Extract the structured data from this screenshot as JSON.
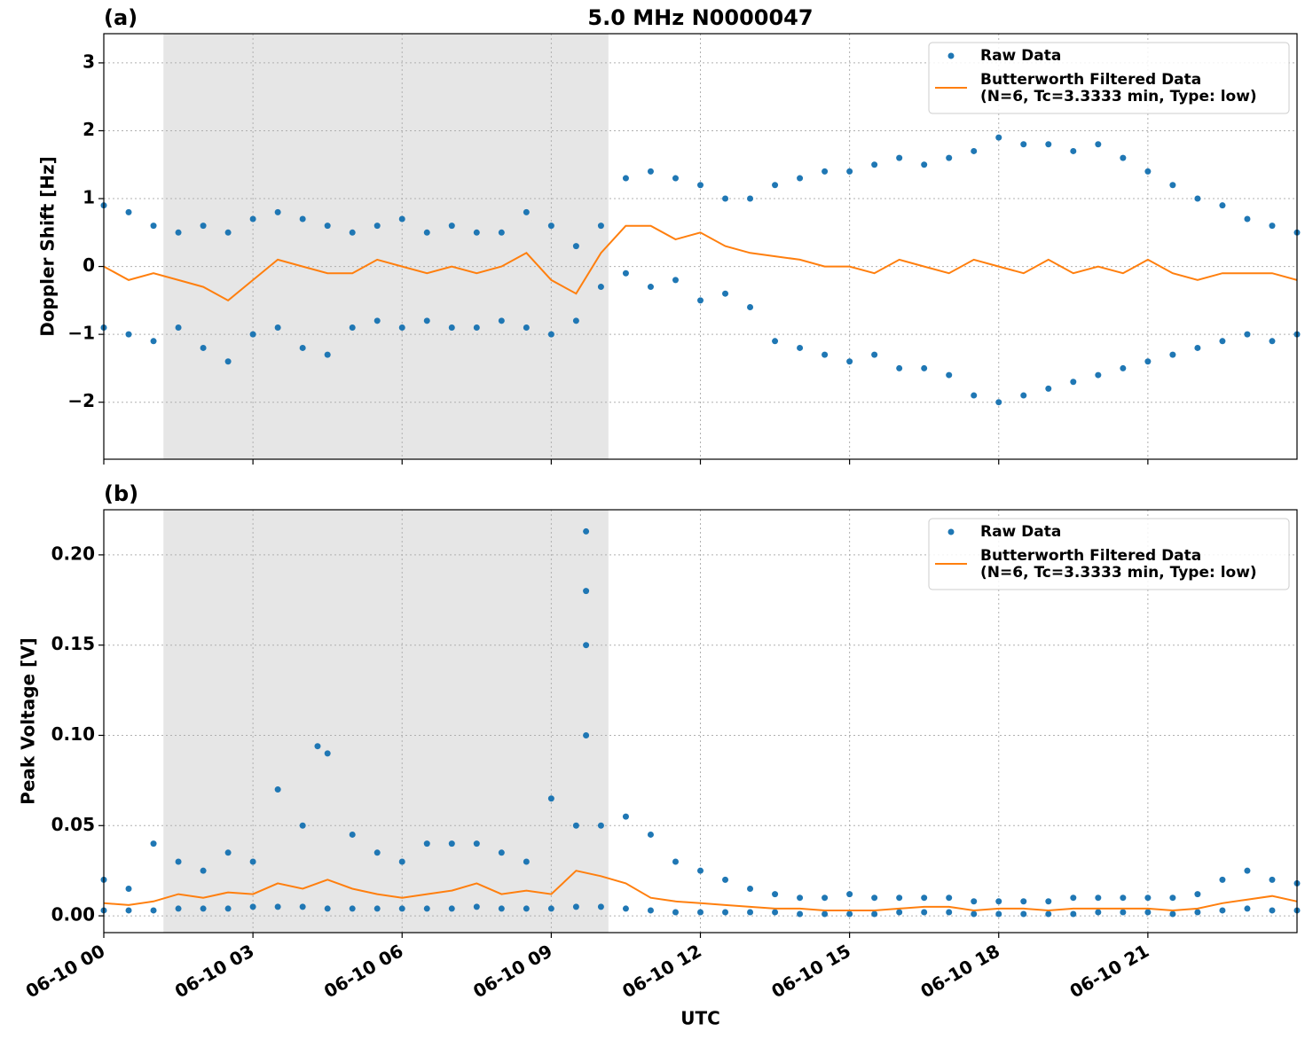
{
  "chart_data": [
    {
      "type": "line",
      "title": "5.0 MHz N0000047",
      "panel_label": "(a)",
      "ylabel": "Doppler Shift [Hz]",
      "xlim": [
        0,
        24
      ],
      "ylim": [
        -2.84,
        3.43
      ],
      "yticks": [
        {
          "value": -2,
          "label": "−2"
        },
        {
          "value": -1,
          "label": "−1"
        },
        0,
        1,
        2,
        3
      ],
      "grid": true,
      "legend": "upper right",
      "shade": [
        1.2,
        10.15
      ],
      "shade_color": "#e6e6e6",
      "series": [
        {
          "name": "Raw Data",
          "kind": "scatter",
          "color": "#1f77b4",
          "x": [
            0,
            0.5,
            1,
            1.5,
            2,
            2.5,
            3,
            3.5,
            4,
            4.5,
            5,
            5.5,
            6,
            6.5,
            7,
            7.5,
            8,
            8.5,
            9,
            9.5,
            10,
            10.5,
            11,
            11.5,
            12,
            12.5,
            13,
            13.5,
            14,
            14.5,
            15,
            15.5,
            16,
            16.5,
            17,
            17.5,
            18,
            18.5,
            19,
            19.5,
            20,
            20.5,
            21,
            21.5,
            22,
            22.5,
            23,
            23.5,
            24,
            0,
            0.5,
            1,
            1.5,
            2,
            2.5,
            3,
            3.5,
            4,
            4.5,
            5,
            5.5,
            6,
            6.5,
            7,
            7.5,
            8,
            8.5,
            9,
            9.5,
            10,
            10.5,
            11,
            11.5,
            12,
            12.5,
            13,
            13.5,
            14,
            14.5,
            15,
            15.5,
            16,
            16.5,
            17,
            17.5,
            18,
            18.5,
            19,
            19.5,
            20,
            20.5,
            21,
            21.5,
            22,
            22.5,
            23,
            23.5,
            24
          ],
          "values": [
            0.9,
            0.8,
            0.6,
            0.5,
            0.6,
            0.5,
            0.7,
            0.8,
            0.7,
            0.6,
            0.5,
            0.6,
            0.7,
            0.5,
            0.6,
            0.5,
            0.5,
            0.8,
            0.6,
            0.3,
            0.6,
            1.3,
            1.4,
            1.3,
            1.2,
            1.0,
            1.0,
            1.2,
            1.3,
            1.4,
            1.4,
            1.5,
            1.6,
            1.5,
            1.6,
            1.7,
            1.9,
            1.8,
            1.8,
            1.7,
            1.8,
            1.6,
            1.4,
            1.2,
            1.0,
            0.9,
            0.7,
            0.6,
            0.5,
            -0.9,
            -1.0,
            -1.1,
            -0.9,
            -1.2,
            -1.4,
            -1.0,
            -0.9,
            -1.2,
            -1.3,
            -0.9,
            -0.8,
            -0.9,
            -0.8,
            -0.9,
            -0.9,
            -0.8,
            -0.9,
            -1.0,
            -0.8,
            -0.3,
            -0.1,
            -0.3,
            -0.2,
            -0.5,
            -0.4,
            -0.6,
            -1.1,
            -1.2,
            -1.3,
            -1.4,
            -1.3,
            -1.5,
            -1.5,
            -1.6,
            -1.9,
            -2.0,
            -1.9,
            -1.8,
            -1.7,
            -1.6,
            -1.5,
            -1.4,
            -1.3,
            -1.2,
            -1.1,
            -1.0,
            -1.1,
            -1.0
          ]
        },
        {
          "name": "Butterworth Filtered Data\n(N=6, Tc=3.3333 min, Type: low)",
          "kind": "line",
          "color": "#ff7f0e",
          "x": [
            0,
            0.5,
            1,
            1.5,
            2,
            2.5,
            3,
            3.5,
            4,
            4.5,
            5,
            5.5,
            6,
            6.5,
            7,
            7.5,
            8,
            8.5,
            9,
            9.5,
            10,
            10.5,
            11,
            11.5,
            12,
            12.5,
            13,
            13.5,
            14,
            14.5,
            15,
            15.5,
            16,
            16.5,
            17,
            17.5,
            18,
            18.5,
            19,
            19.5,
            20,
            20.5,
            21,
            21.5,
            22,
            22.5,
            23,
            23.5,
            24
          ],
          "values": [
            0,
            -0.2,
            -0.1,
            -0.2,
            -0.3,
            -0.5,
            -0.2,
            0.1,
            0.0,
            -0.1,
            -0.1,
            0.1,
            0.0,
            -0.1,
            0.0,
            -0.1,
            0.0,
            0.2,
            -0.2,
            -0.4,
            0.2,
            0.6,
            0.6,
            0.4,
            0.5,
            0.3,
            0.2,
            0.15,
            0.1,
            0.0,
            0.0,
            -0.1,
            0.1,
            0.0,
            -0.1,
            0.1,
            0.0,
            -0.1,
            0.1,
            -0.1,
            0.0,
            -0.1,
            0.1,
            -0.1,
            -0.2,
            -0.1,
            -0.1,
            -0.1,
            -0.2
          ]
        }
      ]
    },
    {
      "type": "line",
      "panel_label": "(b)",
      "ylabel": "Peak Voltage [V]",
      "xlabel": "UTC",
      "xlim": [
        0,
        24
      ],
      "ylim": [
        -0.0093,
        0.225
      ],
      "xticks": [
        {
          "value": 0,
          "label": "06-10 00"
        },
        {
          "value": 3,
          "label": "06-10 03"
        },
        {
          "value": 6,
          "label": "06-10 06"
        },
        {
          "value": 9,
          "label": "06-10 09"
        },
        {
          "value": 12,
          "label": "06-10 12"
        },
        {
          "value": 15,
          "label": "06-10 15"
        },
        {
          "value": 18,
          "label": "06-10 18"
        },
        {
          "value": 21,
          "label": "06-10 21"
        }
      ],
      "yticks": [
        {
          "value": 0,
          "label": "0.00"
        },
        {
          "value": 0.05,
          "label": "0.05"
        },
        {
          "value": 0.1,
          "label": "0.10"
        },
        {
          "value": 0.15,
          "label": "0.15"
        },
        {
          "value": 0.2,
          "label": "0.20"
        }
      ],
      "grid": true,
      "legend": "upper right",
      "shade": [
        1.2,
        10.15
      ],
      "shade_color": "#e6e6e6",
      "series": [
        {
          "name": "Raw Data",
          "kind": "scatter",
          "color": "#1f77b4",
          "x": [
            0,
            0.5,
            1,
            1.5,
            2,
            2.5,
            3,
            3.5,
            4,
            4.5,
            5,
            5.5,
            6,
            6.5,
            7,
            7.5,
            8,
            8.5,
            9,
            9.5,
            10,
            10.5,
            11,
            11.5,
            12,
            12.5,
            13,
            13.5,
            14,
            14.5,
            15,
            15.5,
            16,
            16.5,
            17,
            17.5,
            18,
            18.5,
            19,
            19.5,
            20,
            20.5,
            21,
            21.5,
            22,
            22.5,
            23,
            23.5,
            24,
            0,
            0.5,
            1,
            1.5,
            2,
            2.5,
            3,
            3.5,
            4,
            4.5,
            5,
            5.5,
            6,
            6.5,
            7,
            7.5,
            8,
            8.5,
            9,
            9.5,
            10,
            10.5,
            11,
            11.5,
            12,
            12.5,
            13,
            13.5,
            14,
            14.5,
            15,
            15.5,
            16,
            16.5,
            17,
            17.5,
            18,
            18.5,
            19,
            19.5,
            20,
            20.5,
            21,
            21.5,
            22,
            22.5,
            23,
            23.5,
            24,
            9.7,
            9.7,
            9.7,
            9.7,
            4.3
          ],
          "values": [
            0.02,
            0.015,
            0.04,
            0.03,
            0.025,
            0.035,
            0.03,
            0.07,
            0.05,
            0.09,
            0.045,
            0.035,
            0.03,
            0.04,
            0.04,
            0.04,
            0.035,
            0.03,
            0.065,
            0.05,
            0.05,
            0.055,
            0.045,
            0.03,
            0.025,
            0.02,
            0.015,
            0.012,
            0.01,
            0.01,
            0.012,
            0.01,
            0.01,
            0.01,
            0.01,
            0.008,
            0.008,
            0.008,
            0.008,
            0.01,
            0.01,
            0.01,
            0.01,
            0.01,
            0.012,
            0.02,
            0.025,
            0.02,
            0.018,
            0.003,
            0.003,
            0.003,
            0.004,
            0.004,
            0.004,
            0.005,
            0.005,
            0.005,
            0.004,
            0.004,
            0.004,
            0.004,
            0.004,
            0.004,
            0.005,
            0.004,
            0.004,
            0.004,
            0.005,
            0.005,
            0.004,
            0.003,
            0.002,
            0.002,
            0.002,
            0.002,
            0.002,
            0.001,
            0.001,
            0.001,
            0.001,
            0.002,
            0.002,
            0.002,
            0.001,
            0.001,
            0.001,
            0.001,
            0.001,
            0.002,
            0.002,
            0.002,
            0.001,
            0.002,
            0.003,
            0.004,
            0.003,
            0.003,
            0.213,
            0.18,
            0.15,
            0.1,
            0.094
          ]
        },
        {
          "name": "Butterworth Filtered Data\n(N=6, Tc=3.3333 min, Type: low)",
          "kind": "line",
          "color": "#ff7f0e",
          "x": [
            0,
            0.5,
            1,
            1.5,
            2,
            2.5,
            3,
            3.5,
            4,
            4.5,
            5,
            5.5,
            6,
            6.5,
            7,
            7.5,
            8,
            8.5,
            9,
            9.5,
            10,
            10.5,
            11,
            11.5,
            12,
            12.5,
            13,
            13.5,
            14,
            14.5,
            15,
            15.5,
            16,
            16.5,
            17,
            17.5,
            18,
            18.5,
            19,
            19.5,
            20,
            20.5,
            21,
            21.5,
            22,
            22.5,
            23,
            23.5,
            24
          ],
          "values": [
            0.007,
            0.006,
            0.008,
            0.012,
            0.01,
            0.013,
            0.012,
            0.018,
            0.015,
            0.02,
            0.015,
            0.012,
            0.01,
            0.012,
            0.014,
            0.018,
            0.012,
            0.014,
            0.012,
            0.025,
            0.022,
            0.018,
            0.01,
            0.008,
            0.007,
            0.006,
            0.005,
            0.004,
            0.004,
            0.003,
            0.003,
            0.003,
            0.004,
            0.005,
            0.005,
            0.003,
            0.004,
            0.004,
            0.003,
            0.004,
            0.004,
            0.004,
            0.004,
            0.003,
            0.004,
            0.007,
            0.009,
            0.011,
            0.008
          ]
        }
      ]
    }
  ]
}
